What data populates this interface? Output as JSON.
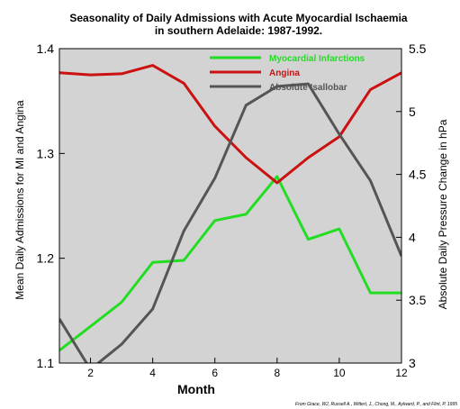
{
  "chart_data": {
    "type": "line",
    "title_lines": [
      "Seasonality of Daily Admissions with Acute Myocardial Ischaemia",
      "in southern Adelaide: 1987-1992."
    ],
    "xlabel": "Month",
    "ylabel_left": "Mean Daily Admissions for MI and Angina",
    "ylabel_right": "Absolute Daily Pressure Change in hPa",
    "xlim": [
      1,
      12
    ],
    "x_ticks": [
      2,
      4,
      6,
      8,
      10,
      12
    ],
    "ylim_left": [
      1.1,
      1.4
    ],
    "y_ticks_left": [
      "1.1",
      "1.2",
      "1.3",
      "1.4"
    ],
    "ylim_right": [
      3,
      5.5
    ],
    "y_ticks_right": [
      "3",
      "3.5",
      "4",
      "4.5",
      "5",
      "5.5"
    ],
    "x": [
      1,
      2,
      3,
      4,
      5,
      6,
      7,
      8,
      9,
      10,
      11,
      12
    ],
    "series": [
      {
        "name": "Myocardial Infarctions",
        "axis": "left",
        "color": "#22dd22",
        "values": [
          1.112,
          1.135,
          1.158,
          1.196,
          1.198,
          1.236,
          1.242,
          1.278,
          1.218,
          1.228,
          1.167,
          1.167
        ]
      },
      {
        "name": "Angina",
        "axis": "left",
        "color": "#cc1111",
        "values": [
          1.377,
          1.375,
          1.376,
          1.384,
          1.367,
          1.326,
          1.296,
          1.272,
          1.296,
          1.316,
          1.361,
          1.377
        ]
      },
      {
        "name": "Absolute Isallobar",
        "axis": "right",
        "color": "#555555",
        "values": [
          3.35,
          2.95,
          3.15,
          3.43,
          4.05,
          4.47,
          5.05,
          5.2,
          5.22,
          4.82,
          4.45,
          3.85
        ]
      }
    ],
    "legend_position": "top-right",
    "grid": false,
    "plot_background": "#d3d3d3",
    "citation": "From Grace, WJ, Russell A., Wittert, J., Chong, M., Aylward, P., and Flint, P. 1995"
  }
}
